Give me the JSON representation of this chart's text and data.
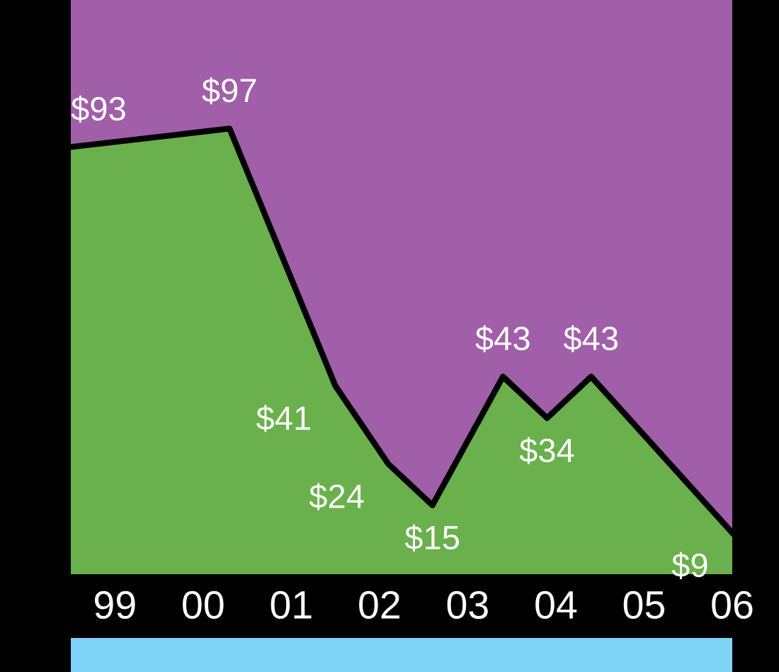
{
  "chart_data": {
    "type": "area",
    "x": [
      1998.5,
      2000.3,
      2001.5,
      2002.1,
      2002.6,
      2003.4,
      2003.9,
      2004.4,
      2006
    ],
    "series": [
      {
        "color": "#6ab04c",
        "values": [
          93,
          97,
          41,
          24,
          15,
          43,
          34,
          43,
          9
        ],
        "value_labels": [
          "$93",
          "$97",
          "$41",
          "$24",
          "$15",
          "$43",
          "$34",
          "$43",
          "$9"
        ]
      }
    ],
    "xlim": [
      1998.5,
      2006
    ],
    "ylim": [
      0,
      125
    ],
    "xticks": [
      {
        "value": 1999,
        "label": "99"
      },
      {
        "value": 2000,
        "label": "00"
      },
      {
        "value": 2001,
        "label": "01"
      },
      {
        "value": 2002,
        "label": "02"
      },
      {
        "value": 2003,
        "label": "03"
      },
      {
        "value": 2004,
        "label": "04"
      },
      {
        "value": 2005,
        "label": "05"
      },
      {
        "value": 2006,
        "label": "06"
      }
    ],
    "tick_labels": "x",
    "grid": false,
    "line_style": "solid"
  }
}
